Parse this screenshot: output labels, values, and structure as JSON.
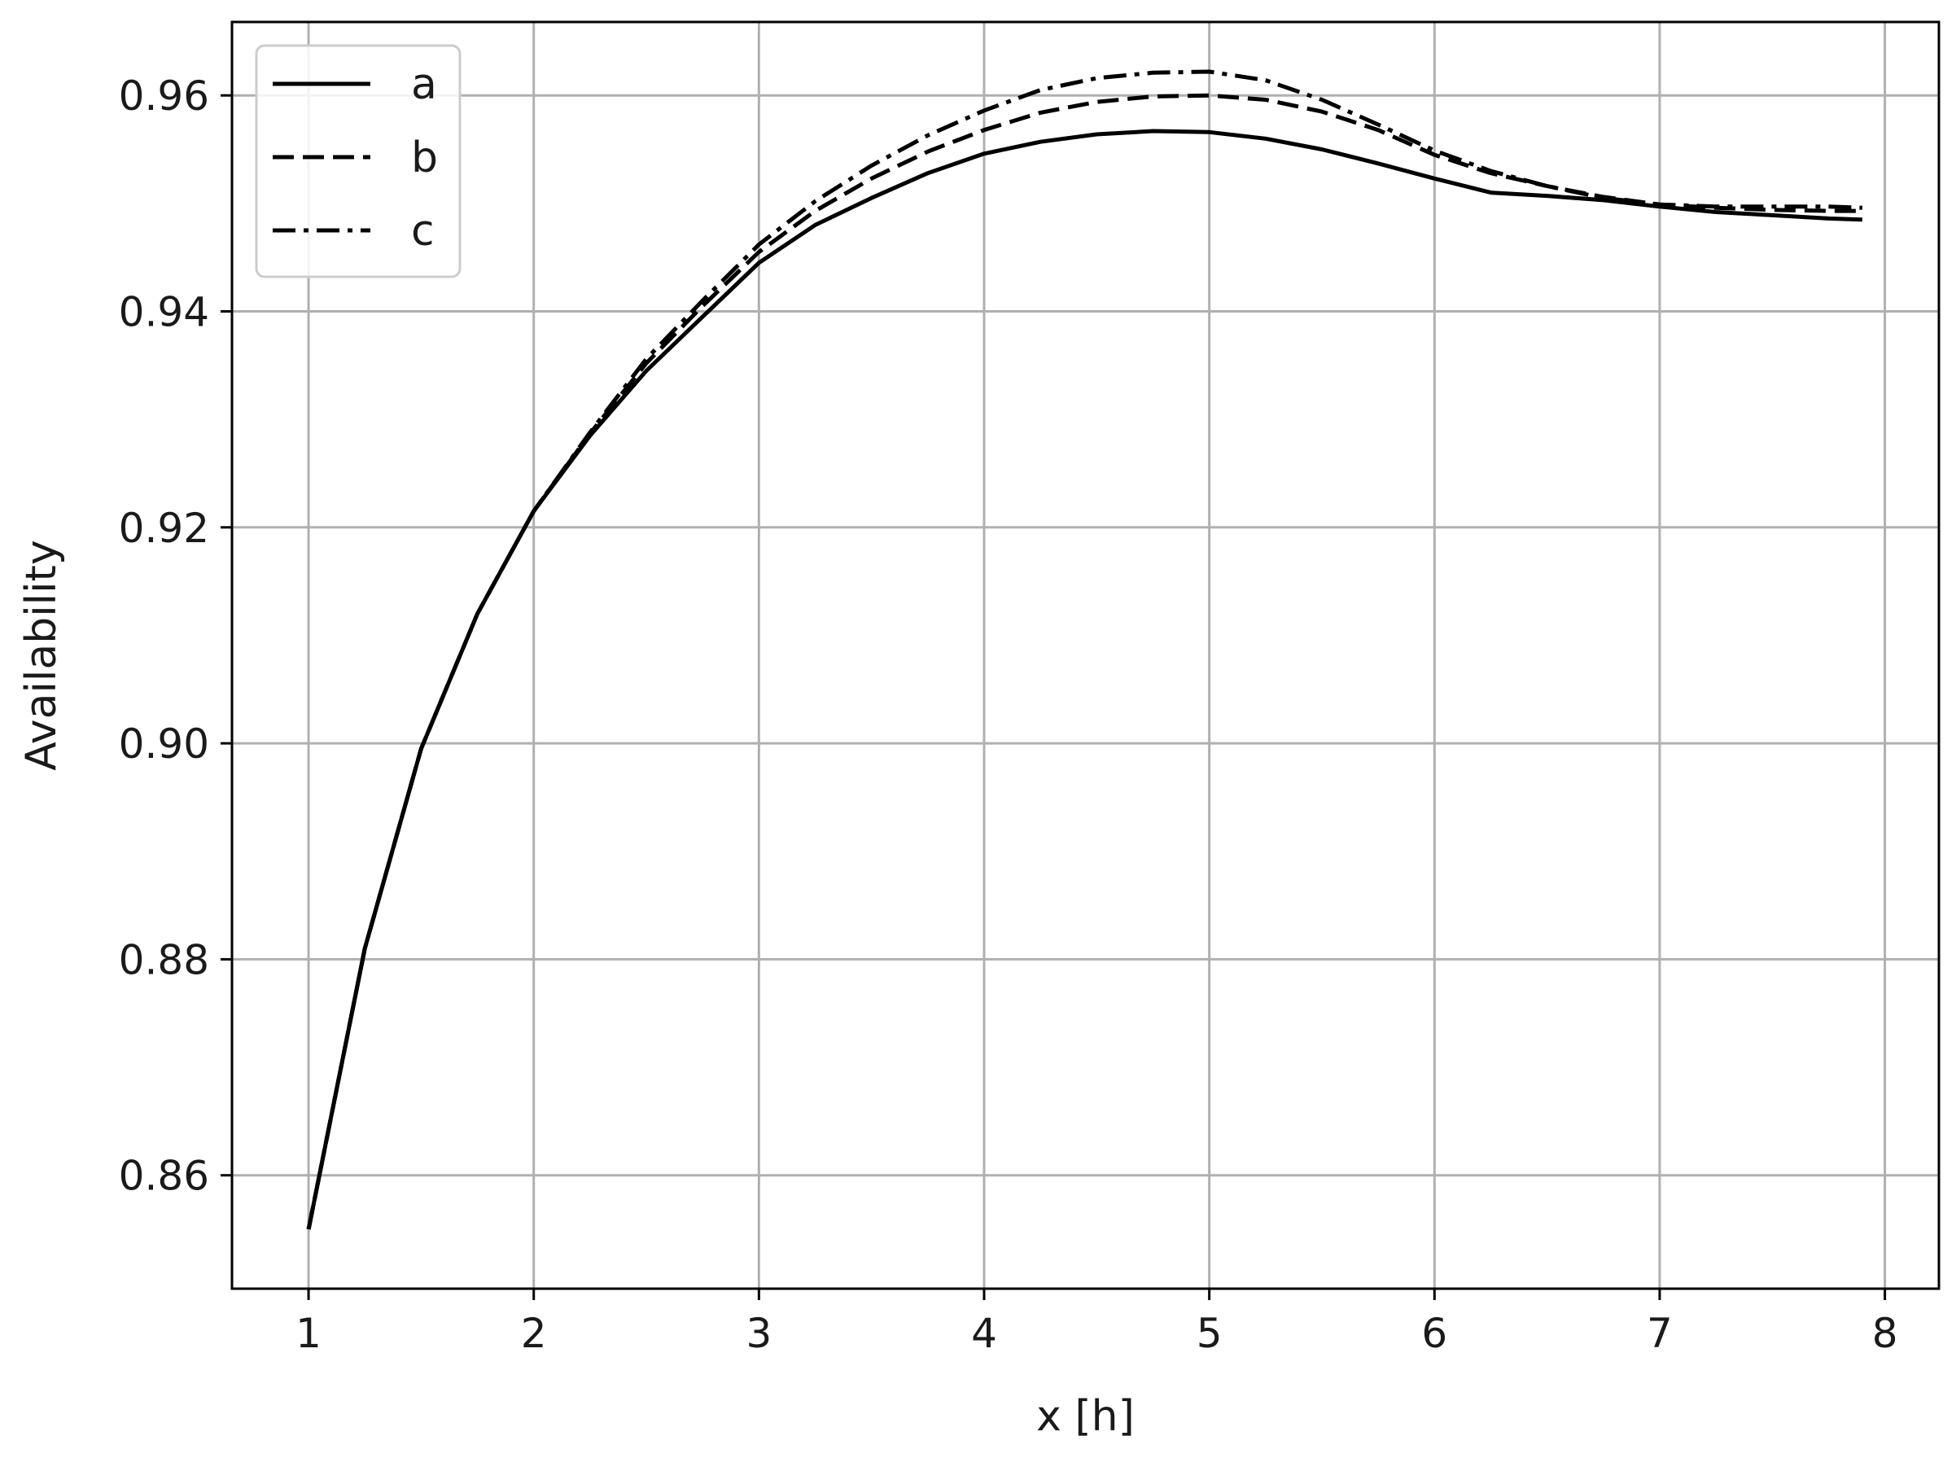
{
  "chart_data": {
    "type": "line",
    "title": "",
    "xlabel": "x [h]",
    "ylabel": "Availability",
    "xlim": [
      0.66,
      8.24
    ],
    "ylim": [
      0.8495,
      0.9668
    ],
    "xticks": [
      1,
      2,
      3,
      4,
      5,
      6,
      7,
      8
    ],
    "xtick_labels": [
      "1",
      "2",
      "3",
      "4",
      "5",
      "6",
      "7",
      "8"
    ],
    "yticks": [
      0.86,
      0.88,
      0.9,
      0.92,
      0.94,
      0.96
    ],
    "ytick_labels": [
      "0.86",
      "0.88",
      "0.90",
      "0.92",
      "0.94",
      "0.96"
    ],
    "grid": true,
    "legend_position": "top-left",
    "x": [
      1.0,
      1.25,
      1.5,
      1.75,
      2.0,
      2.25,
      2.5,
      2.75,
      3.0,
      3.25,
      3.5,
      3.75,
      4.0,
      4.25,
      4.5,
      4.75,
      5.0,
      5.25,
      5.5,
      5.75,
      6.0,
      6.25,
      6.5,
      6.75,
      7.0,
      7.25,
      7.5,
      7.75,
      7.9
    ],
    "series": [
      {
        "name": "a",
        "line_style": "solid",
        "color": "#000000",
        "values": [
          0.855,
          0.881,
          0.8995,
          0.912,
          0.9215,
          0.9285,
          0.9345,
          0.9395,
          0.9445,
          0.948,
          0.9505,
          0.9528,
          0.9546,
          0.9557,
          0.9564,
          0.9567,
          0.9566,
          0.956,
          0.955,
          0.9537,
          0.9523,
          0.951,
          0.9507,
          0.9503,
          0.9497,
          0.9492,
          0.9489,
          0.9486,
          0.9485
        ]
      },
      {
        "name": "b",
        "line_style": "dashed",
        "color": "#000000",
        "values": [
          0.855,
          0.881,
          0.8995,
          0.912,
          0.9215,
          0.9287,
          0.9352,
          0.9405,
          0.9455,
          0.9493,
          0.9523,
          0.9548,
          0.9568,
          0.9584,
          0.9594,
          0.9599,
          0.96,
          0.9596,
          0.9585,
          0.9568,
          0.9545,
          0.9528,
          0.9516,
          0.9506,
          0.9499,
          0.9496,
          0.9494,
          0.9493,
          0.9493
        ]
      },
      {
        "name": "c",
        "line_style": "dashdot",
        "color": "#000000",
        "values": [
          0.855,
          0.881,
          0.8995,
          0.912,
          0.9215,
          0.9288,
          0.9356,
          0.941,
          0.9462,
          0.9502,
          0.9535,
          0.9563,
          0.9586,
          0.9605,
          0.9616,
          0.9621,
          0.9622,
          0.9614,
          0.9596,
          0.9573,
          0.9549,
          0.953,
          0.9516,
          0.9505,
          0.9499,
          0.9497,
          0.9497,
          0.9497,
          0.9496
        ]
      }
    ]
  }
}
